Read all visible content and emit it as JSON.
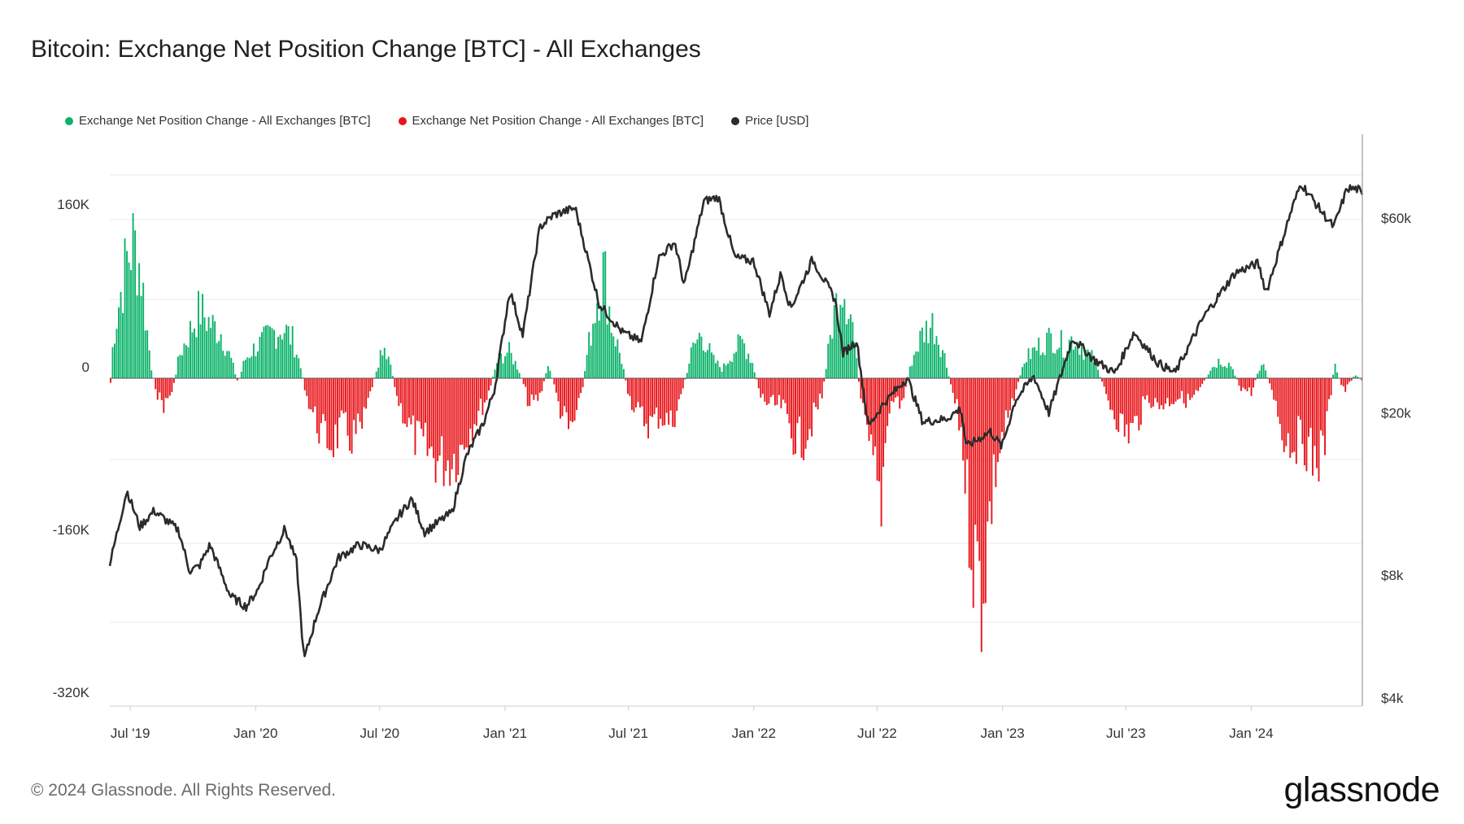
{
  "title": "Bitcoin: Exchange Net Position Change [BTC] - All Exchanges",
  "footer": "© 2024 Glassnode. All Rights Reserved.",
  "brand": "glassnode",
  "colors": {
    "positive": "#0bb36a",
    "negative": "#e8161b",
    "price": "#2b2b2b",
    "grid": "#e9e9e9"
  },
  "legend": [
    {
      "label": "Exchange Net Position Change - All Exchanges [BTC]",
      "color": "#0bb36a"
    },
    {
      "label": "Exchange Net Position Change - All Exchanges [BTC]",
      "color": "#e8161b"
    },
    {
      "label": "Price [USD]",
      "color": "#2b2b2b"
    }
  ],
  "chart_data": {
    "type": "bar",
    "title": "Bitcoin: Exchange Net Position Change [BTC] - All Exchanges",
    "grid": "horizontal",
    "legend_position": "top-left",
    "x_ticks": [
      "Jul '19",
      "Jan '20",
      "Jul '20",
      "Jan '21",
      "Jul '21",
      "Jan '22",
      "Jul '22",
      "Jan '23",
      "Jul '23",
      "Jan '24"
    ],
    "x_tick_dates": [
      "2019-07-01",
      "2020-01-01",
      "2020-07-01",
      "2021-01-01",
      "2021-07-01",
      "2022-01-01",
      "2022-07-01",
      "2023-01-01",
      "2023-07-01",
      "2024-01-01"
    ],
    "x_range": [
      "2019-06-01",
      "2024-06-12"
    ],
    "left_axis": {
      "label": "Exchange Net Position Change [BTC]",
      "ticks": [
        "160K",
        "0",
        "-160K",
        "-320K"
      ],
      "tick_values": [
        160000,
        0,
        -160000,
        -320000
      ],
      "range": [
        -320000,
        200000
      ]
    },
    "right_axis": {
      "label": "Price [USD]",
      "scale": "log",
      "ticks": [
        "$60k",
        "$20k",
        "$8k",
        "$4k"
      ],
      "tick_values": [
        60000,
        20000,
        8000,
        4000
      ],
      "range": [
        4000,
        100000
      ]
    },
    "series": [
      {
        "name": "Exchange Net Position Change - All Exchanges [BTC]",
        "type": "bar",
        "points": [
          [
            "2019-06-01",
            -5000
          ],
          [
            "2019-06-05",
            45000
          ],
          [
            "2019-06-15",
            90000
          ],
          [
            "2019-06-25",
            130000
          ],
          [
            "2019-07-05",
            150000
          ],
          [
            "2019-07-15",
            120000
          ],
          [
            "2019-07-25",
            50000
          ],
          [
            "2019-08-01",
            5000
          ],
          [
            "2019-08-10",
            -20000
          ],
          [
            "2019-08-20",
            -30000
          ],
          [
            "2019-09-01",
            -10000
          ],
          [
            "2019-09-10",
            25000
          ],
          [
            "2019-09-25",
            50000
          ],
          [
            "2019-10-10",
            75000
          ],
          [
            "2019-10-25",
            60000
          ],
          [
            "2019-11-10",
            50000
          ],
          [
            "2019-11-25",
            20000
          ],
          [
            "2019-12-05",
            -5000
          ],
          [
            "2019-12-15",
            20000
          ],
          [
            "2019-12-25",
            30000
          ],
          [
            "2020-01-10",
            40000
          ],
          [
            "2020-01-25",
            50000
          ],
          [
            "2020-02-10",
            55000
          ],
          [
            "2020-02-25",
            40000
          ],
          [
            "2020-03-05",
            15000
          ],
          [
            "2020-03-15",
            -20000
          ],
          [
            "2020-03-25",
            -40000
          ],
          [
            "2020-04-05",
            -60000
          ],
          [
            "2020-04-20",
            -70000
          ],
          [
            "2020-05-05",
            -55000
          ],
          [
            "2020-05-20",
            -65000
          ],
          [
            "2020-06-05",
            -55000
          ],
          [
            "2020-06-15",
            -20000
          ],
          [
            "2020-06-25",
            10000
          ],
          [
            "2020-07-05",
            40000
          ],
          [
            "2020-07-15",
            20000
          ],
          [
            "2020-07-25",
            -20000
          ],
          [
            "2020-08-10",
            -50000
          ],
          [
            "2020-08-25",
            -70000
          ],
          [
            "2020-09-10",
            -80000
          ],
          [
            "2020-09-25",
            -90000
          ],
          [
            "2020-10-10",
            -90000
          ],
          [
            "2020-10-25",
            -80000
          ],
          [
            "2020-11-05",
            -60000
          ],
          [
            "2020-11-20",
            -40000
          ],
          [
            "2020-12-05",
            -20000
          ],
          [
            "2020-12-20",
            20000
          ],
          [
            "2021-01-05",
            30000
          ],
          [
            "2021-01-20",
            10000
          ],
          [
            "2021-02-05",
            -30000
          ],
          [
            "2021-02-20",
            -20000
          ],
          [
            "2021-03-05",
            15000
          ],
          [
            "2021-03-20",
            -30000
          ],
          [
            "2021-04-05",
            -60000
          ],
          [
            "2021-04-20",
            -30000
          ],
          [
            "2021-05-01",
            30000
          ],
          [
            "2021-05-15",
            90000
          ],
          [
            "2021-05-25",
            120000
          ],
          [
            "2021-06-05",
            60000
          ],
          [
            "2021-06-20",
            20000
          ],
          [
            "2021-07-01",
            -20000
          ],
          [
            "2021-07-15",
            -40000
          ],
          [
            "2021-08-01",
            -50000
          ],
          [
            "2021-08-15",
            -40000
          ],
          [
            "2021-09-01",
            -50000
          ],
          [
            "2021-09-15",
            -20000
          ],
          [
            "2021-10-01",
            30000
          ],
          [
            "2021-10-15",
            50000
          ],
          [
            "2021-11-01",
            20000
          ],
          [
            "2021-11-15",
            10000
          ],
          [
            "2021-12-01",
            30000
          ],
          [
            "2021-12-15",
            40000
          ],
          [
            "2021-12-28",
            20000
          ],
          [
            "2022-01-10",
            -20000
          ],
          [
            "2022-01-25",
            -30000
          ],
          [
            "2022-02-10",
            -30000
          ],
          [
            "2022-02-25",
            -60000
          ],
          [
            "2022-03-10",
            -70000
          ],
          [
            "2022-03-25",
            -50000
          ],
          [
            "2022-04-10",
            -20000
          ],
          [
            "2022-04-25",
            60000
          ],
          [
            "2022-05-10",
            110000
          ],
          [
            "2022-05-25",
            60000
          ],
          [
            "2022-06-05",
            -20000
          ],
          [
            "2022-06-15",
            -70000
          ],
          [
            "2022-06-25",
            -100000
          ],
          [
            "2022-07-05",
            -140000
          ],
          [
            "2022-07-15",
            -40000
          ],
          [
            "2022-07-25",
            -20000
          ],
          [
            "2022-08-05",
            -30000
          ],
          [
            "2022-08-20",
            20000
          ],
          [
            "2022-09-05",
            50000
          ],
          [
            "2022-09-20",
            60000
          ],
          [
            "2022-10-05",
            30000
          ],
          [
            "2022-10-20",
            -20000
          ],
          [
            "2022-11-01",
            -60000
          ],
          [
            "2022-11-10",
            -140000
          ],
          [
            "2022-11-20",
            -200000
          ],
          [
            "2022-12-01",
            -230000
          ],
          [
            "2022-12-10",
            -160000
          ],
          [
            "2022-12-20",
            -100000
          ],
          [
            "2023-01-01",
            -60000
          ],
          [
            "2023-01-15",
            -30000
          ],
          [
            "2023-02-01",
            20000
          ],
          [
            "2023-02-15",
            30000
          ],
          [
            "2023-03-01",
            40000
          ],
          [
            "2023-03-15",
            45000
          ],
          [
            "2023-04-01",
            35000
          ],
          [
            "2023-04-15",
            45000
          ],
          [
            "2023-05-01",
            30000
          ],
          [
            "2023-05-15",
            20000
          ],
          [
            "2023-06-01",
            -20000
          ],
          [
            "2023-06-15",
            -40000
          ],
          [
            "2023-07-01",
            -60000
          ],
          [
            "2023-07-15",
            -50000
          ],
          [
            "2023-08-01",
            -20000
          ],
          [
            "2023-08-15",
            -30000
          ],
          [
            "2023-09-01",
            -25000
          ],
          [
            "2023-09-15",
            -20000
          ],
          [
            "2023-10-01",
            -25000
          ],
          [
            "2023-10-15",
            -15000
          ],
          [
            "2023-11-01",
            10000
          ],
          [
            "2023-11-15",
            20000
          ],
          [
            "2023-12-01",
            15000
          ],
          [
            "2023-12-15",
            -10000
          ],
          [
            "2024-01-01",
            -15000
          ],
          [
            "2024-01-15",
            20000
          ],
          [
            "2024-02-01",
            -15000
          ],
          [
            "2024-02-15",
            -60000
          ],
          [
            "2024-03-01",
            -70000
          ],
          [
            "2024-03-15",
            -65000
          ],
          [
            "2024-04-01",
            -90000
          ],
          [
            "2024-04-15",
            -80000
          ],
          [
            "2024-05-01",
            15000
          ],
          [
            "2024-05-15",
            -15000
          ],
          [
            "2024-06-01",
            5000
          ],
          [
            "2024-06-12",
            -5000
          ]
        ]
      },
      {
        "name": "Price [USD]",
        "type": "line",
        "points": [
          [
            "2019-06-01",
            8500
          ],
          [
            "2019-06-26",
            12900
          ],
          [
            "2019-07-15",
            10500
          ],
          [
            "2019-08-05",
            11500
          ],
          [
            "2019-09-10",
            10300
          ],
          [
            "2019-09-26",
            8200
          ],
          [
            "2019-10-10",
            8400
          ],
          [
            "2019-10-26",
            9500
          ],
          [
            "2019-11-25",
            7100
          ],
          [
            "2019-12-18",
            6700
          ],
          [
            "2020-01-05",
            7400
          ],
          [
            "2020-01-20",
            8700
          ],
          [
            "2020-02-13",
            10400
          ],
          [
            "2020-03-01",
            8600
          ],
          [
            "2020-03-12",
            4950
          ],
          [
            "2020-04-01",
            6500
          ],
          [
            "2020-05-01",
            8800
          ],
          [
            "2020-06-01",
            9500
          ],
          [
            "2020-07-01",
            9200
          ],
          [
            "2020-07-28",
            11100
          ],
          [
            "2020-08-17",
            12300
          ],
          [
            "2020-09-05",
            10200
          ],
          [
            "2020-10-15",
            11400
          ],
          [
            "2020-11-05",
            15600
          ],
          [
            "2020-12-01",
            19000
          ],
          [
            "2020-12-17",
            23000
          ],
          [
            "2021-01-08",
            40000
          ],
          [
            "2021-01-27",
            31000
          ],
          [
            "2021-02-21",
            57000
          ],
          [
            "2021-03-13",
            61000
          ],
          [
            "2021-04-14",
            63500
          ],
          [
            "2021-05-19",
            37000
          ],
          [
            "2021-06-22",
            31500
          ],
          [
            "2021-07-20",
            29800
          ],
          [
            "2021-08-14",
            47800
          ],
          [
            "2021-09-07",
            52500
          ],
          [
            "2021-09-21",
            41000
          ],
          [
            "2021-10-20",
            66000
          ],
          [
            "2021-11-10",
            67500
          ],
          [
            "2021-12-04",
            48000
          ],
          [
            "2022-01-01",
            47000
          ],
          [
            "2022-01-24",
            35000
          ],
          [
            "2022-02-10",
            44000
          ],
          [
            "2022-02-24",
            36000
          ],
          [
            "2022-03-28",
            47500
          ],
          [
            "2022-04-30",
            38000
          ],
          [
            "2022-05-12",
            28000
          ],
          [
            "2022-06-01",
            30000
          ],
          [
            "2022-06-18",
            18500
          ],
          [
            "2022-07-10",
            21000
          ],
          [
            "2022-08-14",
            24400
          ],
          [
            "2022-09-06",
            19000
          ],
          [
            "2022-10-10",
            19300
          ],
          [
            "2022-11-01",
            20500
          ],
          [
            "2022-11-09",
            16500
          ],
          [
            "2022-12-14",
            18000
          ],
          [
            "2022-12-31",
            16500
          ],
          [
            "2023-01-20",
            21500
          ],
          [
            "2023-02-16",
            24600
          ],
          [
            "2023-03-10",
            20000
          ],
          [
            "2023-04-14",
            30500
          ],
          [
            "2023-05-15",
            27000
          ],
          [
            "2023-06-15",
            25000
          ],
          [
            "2023-07-13",
            31500
          ],
          [
            "2023-08-17",
            26500
          ],
          [
            "2023-09-11",
            25000
          ],
          [
            "2023-10-24",
            34500
          ],
          [
            "2023-12-08",
            44000
          ],
          [
            "2024-01-11",
            46500
          ],
          [
            "2024-01-23",
            39500
          ],
          [
            "2024-02-28",
            62000
          ],
          [
            "2024-03-14",
            73000
          ],
          [
            "2024-04-17",
            61000
          ],
          [
            "2024-05-01",
            57000
          ],
          [
            "2024-05-21",
            71000
          ],
          [
            "2024-06-07",
            70500
          ],
          [
            "2024-06-12",
            67500
          ]
        ]
      }
    ]
  }
}
